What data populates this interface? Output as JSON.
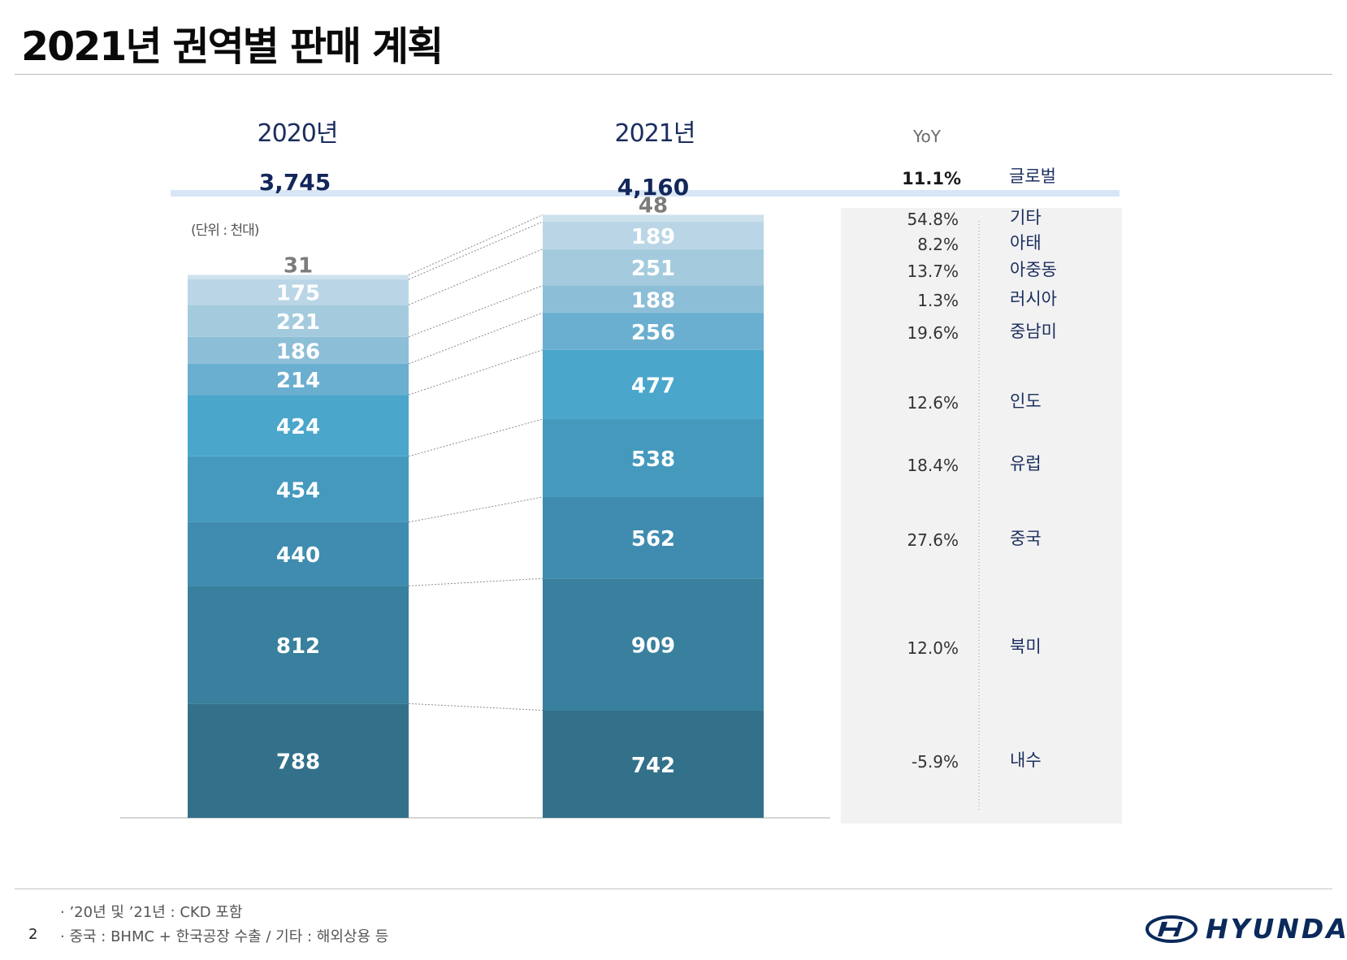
{
  "page": {
    "title": "2021년 권역별 판매 계획",
    "page_number": "2",
    "footnotes": [
      "· ’20년 및 ’21년 : CKD 포함",
      "· 중국 : BHMC + 한국공장 수출 / 기타 : 해외상용 등"
    ],
    "brand": "HYUNDAI"
  },
  "chart_data": {
    "type": "bar",
    "stacked": true,
    "title": "2021년 권역별 판매 계획",
    "unit_label": "(단위 : 천대)",
    "categories": [
      "2020년",
      "2021년"
    ],
    "totals": [
      "3,745",
      "4,160"
    ],
    "yoy_header": "YoY",
    "global": {
      "name": "글로벌",
      "yoy": "11.1%"
    },
    "series": [
      {
        "name": "내수",
        "values": [
          788,
          742
        ],
        "yoy": "-5.9%",
        "color": "#33718b"
      },
      {
        "name": "북미",
        "values": [
          812,
          909
        ],
        "yoy": "12.0%",
        "color": "#38809d"
      },
      {
        "name": "중국",
        "values": [
          440,
          562
        ],
        "yoy": "27.6%",
        "color": "#3f8cb0"
      },
      {
        "name": "유럽",
        "values": [
          454,
          538
        ],
        "yoy": "18.4%",
        "color": "#4499bd"
      },
      {
        "name": "인도",
        "values": [
          424,
          477
        ],
        "yoy": "12.6%",
        "color": "#4aa6cb"
      },
      {
        "name": "중남미",
        "values": [
          214,
          256
        ],
        "yoy": "19.6%",
        "color": "#6aaed0"
      },
      {
        "name": "러시아",
        "values": [
          186,
          188
        ],
        "yoy": "1.3%",
        "color": "#8dbed8"
      },
      {
        "name": "아중동",
        "values": [
          221,
          251
        ],
        "yoy": "13.7%",
        "color": "#a4cbdd"
      },
      {
        "name": "아태",
        "values": [
          175,
          189
        ],
        "yoy": "8.2%",
        "color": "#bad6e6"
      },
      {
        "name": "기타",
        "values": [
          31,
          48
        ],
        "yoy": "54.8%",
        "color": "#cde1ed"
      }
    ],
    "ylim": [
      0,
      4200
    ]
  }
}
